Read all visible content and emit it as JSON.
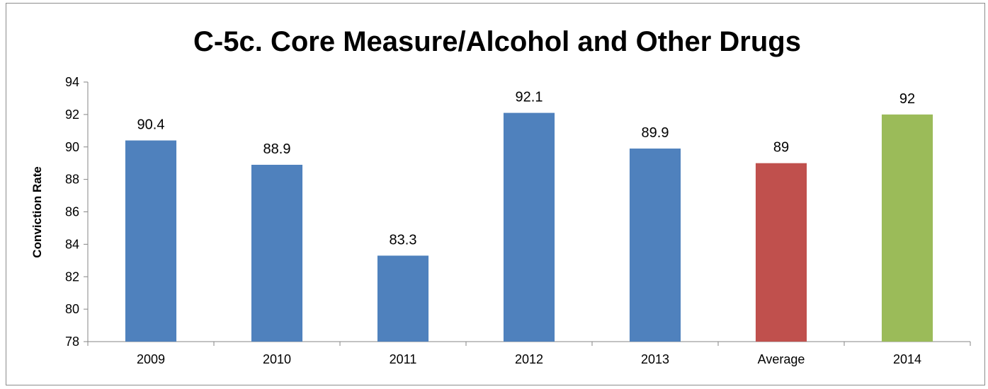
{
  "chart_data": {
    "type": "bar",
    "title": "C-5c. Core Measure/Alcohol and Other  Drugs",
    "xlabel": "",
    "ylabel": "Conviction Rate",
    "categories": [
      "2009",
      "2010",
      "2011",
      "2012",
      "2013",
      "Average",
      "2014"
    ],
    "values": [
      90.4,
      88.9,
      83.3,
      92.1,
      89.9,
      89,
      92
    ],
    "data_labels": [
      "90.4",
      "88.9",
      "83.3",
      "92.1",
      "89.9",
      "89",
      "92"
    ],
    "bar_colors": [
      "#4f81bd",
      "#4f81bd",
      "#4f81bd",
      "#4f81bd",
      "#4f81bd",
      "#c0504d",
      "#9bbb59"
    ],
    "ylim": [
      78,
      94
    ],
    "yticks": [
      78,
      80,
      82,
      84,
      86,
      88,
      90,
      92,
      94
    ],
    "grid": false,
    "legend": "none"
  }
}
